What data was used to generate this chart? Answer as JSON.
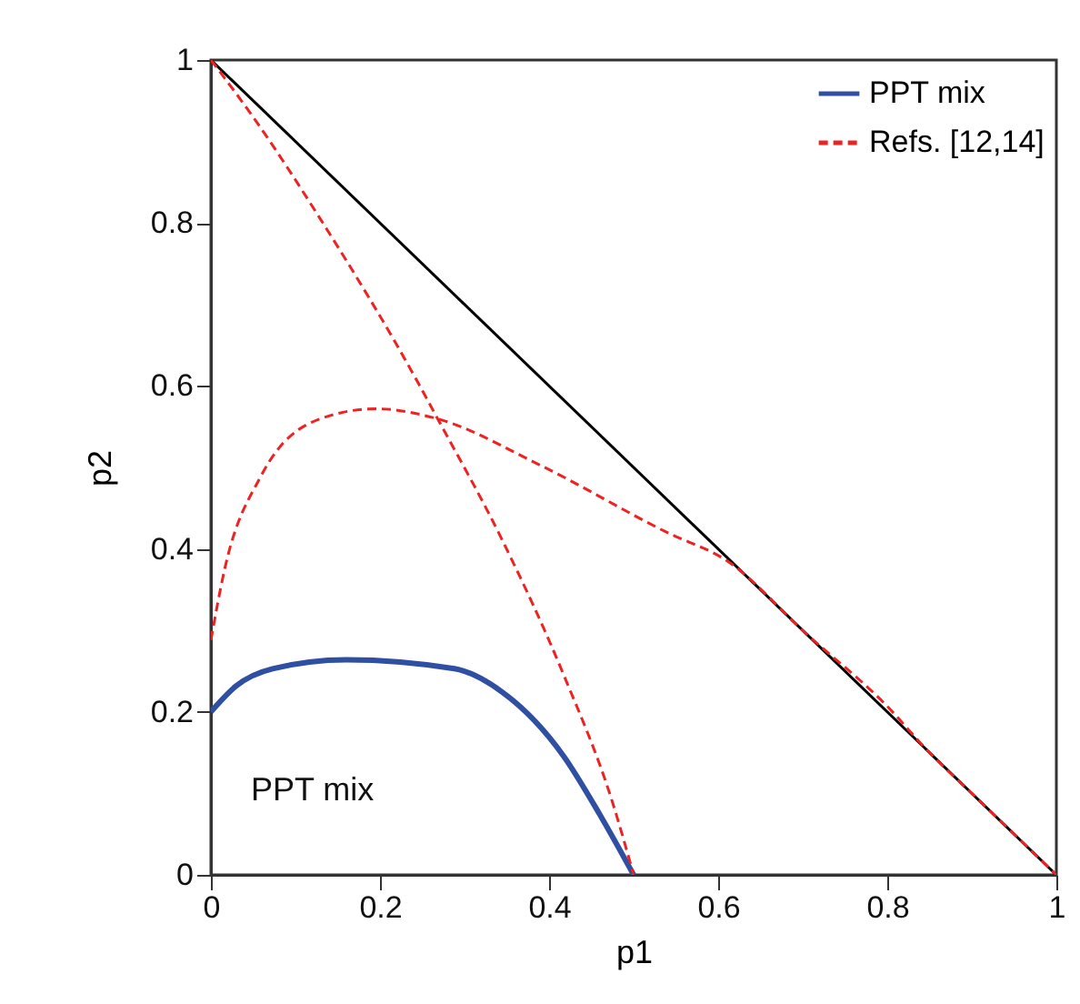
{
  "chart_data": {
    "type": "line",
    "xlabel": "p1",
    "ylabel": "p2",
    "xlim": [
      0,
      1
    ],
    "ylim": [
      0,
      1
    ],
    "xticks": [
      0,
      0.2,
      0.4,
      0.6,
      0.8,
      1
    ],
    "yticks": [
      0,
      0.2,
      0.4,
      0.6,
      0.8,
      1
    ],
    "grid": false,
    "legend": "top right",
    "marker": "none",
    "annotations": [
      "PPT mix"
    ],
    "series": [
      {
        "color": "#000000",
        "line_style": "solid",
        "x": [
          0,
          1
        ],
        "values": [
          1,
          0
        ]
      },
      {
        "name": "PPT mix",
        "color": "#2f4fa3",
        "line_style": "solid",
        "x": [
          0,
          0.03,
          0.073,
          0.16,
          0.288,
          0.345,
          0.417,
          0.46,
          0.5
        ],
        "values": [
          0.2,
          0.232,
          0.253,
          0.264,
          0.253,
          0.224,
          0.146,
          0.074,
          0
        ]
      },
      {
        "name": "Refs. [12,14]",
        "color": "#ee2222",
        "line_style": "dashed",
        "x": [
          0,
          0.05,
          0.13,
          0.245,
          0.267,
          0.345,
          0.417,
          0.475,
          0.5,
          null,
          0,
          0.016,
          0.059,
          0.13,
          0.195,
          0.267,
          0.389,
          0.54,
          0.611,
          0.704,
          0.797,
          0.85,
          0.9,
          1
        ],
        "values": [
          1,
          0.93,
          0.804,
          0.604,
          0.562,
          0.41,
          0.246,
          0.089,
          0,
          null,
          0.288,
          0.374,
          0.489,
          0.56,
          0.572,
          0.56,
          0.503,
          0.42,
          0.385,
          0.296,
          0.21,
          0.15,
          0.1,
          0
        ]
      }
    ]
  }
}
